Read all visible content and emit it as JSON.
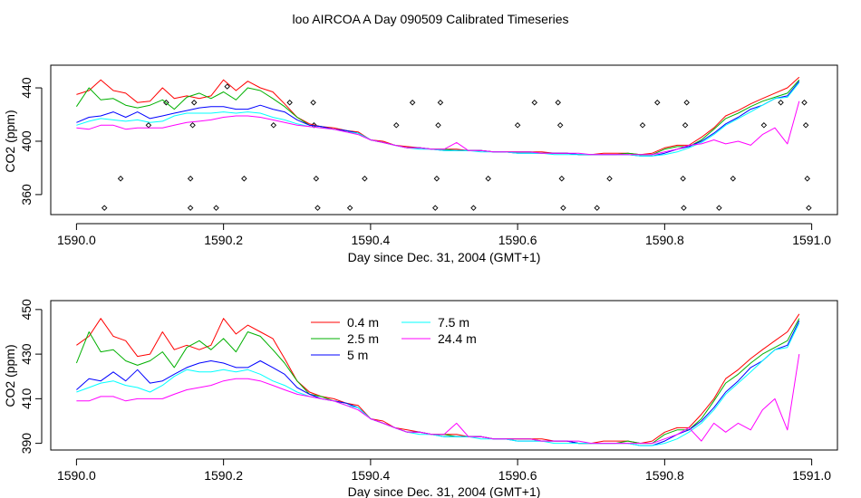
{
  "figure": {
    "title": "loo AIRCOA A  Day 090509  Calibrated Timeseries"
  },
  "chart_data": [
    {
      "type": "line",
      "xlabel": "Day since Dec. 31, 2004 (GMT+1)",
      "ylabel": "CO2 (ppm)",
      "xlim": [
        1589.965,
        1591.035
      ],
      "ylim": [
        345,
        457
      ],
      "xticks": [
        1590.0,
        1590.2,
        1590.4,
        1590.6,
        1590.8,
        1591.0
      ],
      "xtick_labels": [
        "1590.0",
        "1590.2",
        "1590.4",
        "1590.6",
        "1590.8",
        "1591.0"
      ],
      "yticks": [
        360,
        400,
        440
      ],
      "ytick_labels": [
        "360",
        "400",
        "440"
      ],
      "grid": false,
      "legend": null,
      "series_colors": [
        "#ff0000",
        "#00b000",
        "#0000ff",
        "#00ffff",
        "#ff00ff"
      ],
      "x": [
        1590.0,
        1590.017,
        1590.033,
        1590.05,
        1590.067,
        1590.083,
        1590.1,
        1590.117,
        1590.133,
        1590.15,
        1590.167,
        1590.183,
        1590.2,
        1590.217,
        1590.233,
        1590.25,
        1590.267,
        1590.283,
        1590.3,
        1590.317,
        1590.333,
        1590.35,
        1590.367,
        1590.383,
        1590.4,
        1590.417,
        1590.433,
        1590.45,
        1590.467,
        1590.483,
        1590.5,
        1590.517,
        1590.533,
        1590.55,
        1590.567,
        1590.583,
        1590.6,
        1590.617,
        1590.633,
        1590.65,
        1590.667,
        1590.683,
        1590.7,
        1590.717,
        1590.733,
        1590.75,
        1590.767,
        1590.783,
        1590.8,
        1590.817,
        1590.833,
        1590.85,
        1590.867,
        1590.883,
        1590.9,
        1590.917,
        1590.933,
        1590.95,
        1590.967,
        1590.983
      ],
      "series": [
        {
          "values": [
            435,
            438,
            446,
            438,
            436,
            429,
            430,
            440,
            432,
            434,
            432,
            434,
            446,
            438,
            445,
            440,
            437,
            428,
            418,
            413,
            411,
            410,
            408,
            407,
            401,
            400,
            397,
            396,
            395,
            394,
            394,
            394,
            393,
            393,
            392,
            392,
            392,
            392,
            392,
            391,
            391,
            390,
            390,
            391,
            391,
            391,
            390,
            391,
            395,
            397,
            397,
            403,
            410,
            419,
            423,
            428,
            432,
            436,
            440,
            448
          ]
        },
        {
          "values": [
            426,
            440,
            431,
            432,
            427,
            425,
            427,
            431,
            424,
            433,
            436,
            432,
            437,
            431,
            440,
            438,
            432,
            426,
            418,
            412,
            411,
            409,
            408,
            406,
            401,
            399,
            397,
            395,
            395,
            394,
            394,
            393,
            393,
            393,
            392,
            392,
            392,
            392,
            391,
            391,
            391,
            390,
            390,
            390,
            390,
            391,
            390,
            390,
            394,
            396,
            396,
            401,
            409,
            417,
            421,
            426,
            430,
            433,
            436,
            446
          ]
        },
        {
          "values": [
            414,
            418,
            419,
            422,
            418,
            422,
            417,
            419,
            421,
            423,
            425,
            426,
            426,
            424,
            424,
            427,
            424,
            422,
            416,
            412,
            411,
            409,
            408,
            406,
            401,
            399,
            397,
            395,
            395,
            394,
            393,
            393,
            393,
            393,
            392,
            392,
            391,
            391,
            391,
            391,
            391,
            390,
            390,
            390,
            390,
            390,
            389,
            389,
            391,
            394,
            396,
            400,
            406,
            413,
            418,
            424,
            427,
            432,
            434,
            445
          ]
        },
        {
          "values": [
            412,
            415,
            417,
            416,
            415,
            416,
            414,
            415,
            419,
            421,
            421,
            421,
            422,
            421,
            422,
            421,
            418,
            416,
            413,
            411,
            410,
            409,
            407,
            406,
            401,
            399,
            397,
            395,
            394,
            394,
            393,
            393,
            393,
            392,
            392,
            392,
            391,
            391,
            391,
            390,
            390,
            390,
            390,
            390,
            390,
            390,
            389,
            389,
            390,
            392,
            395,
            399,
            405,
            412,
            417,
            422,
            427,
            432,
            433,
            444
          ]
        },
        {
          "values": [
            410,
            409,
            412,
            412,
            409,
            410,
            410,
            410,
            412,
            414,
            415,
            416,
            418,
            419,
            419,
            418,
            416,
            414,
            412,
            411,
            410,
            409,
            407,
            405,
            401,
            399,
            397,
            395,
            395,
            394,
            394,
            399,
            393,
            393,
            392,
            392,
            392,
            392,
            391,
            391,
            391,
            391,
            390,
            390,
            390,
            390,
            390,
            390,
            392,
            394,
            397,
            398,
            401,
            398,
            400,
            397,
            405,
            410,
            398,
            430
          ]
        }
      ],
      "points": [
        {
          "x": 1590.038,
          "y": 350
        },
        {
          "x": 1590.06,
          "y": 372
        },
        {
          "x": 1590.098,
          "y": 412
        },
        {
          "x": 1590.122,
          "y": 429
        },
        {
          "x": 1590.155,
          "y": 350
        },
        {
          "x": 1590.155,
          "y": 372
        },
        {
          "x": 1590.158,
          "y": 412
        },
        {
          "x": 1590.16,
          "y": 429
        },
        {
          "x": 1590.19,
          "y": 350
        },
        {
          "x": 1590.205,
          "y": 441
        },
        {
          "x": 1590.228,
          "y": 372
        },
        {
          "x": 1590.268,
          "y": 412
        },
        {
          "x": 1590.29,
          "y": 429
        },
        {
          "x": 1590.322,
          "y": 429
        },
        {
          "x": 1590.323,
          "y": 412
        },
        {
          "x": 1590.326,
          "y": 372
        },
        {
          "x": 1590.328,
          "y": 350
        },
        {
          "x": 1590.372,
          "y": 350
        },
        {
          "x": 1590.392,
          "y": 372
        },
        {
          "x": 1590.435,
          "y": 412
        },
        {
          "x": 1590.457,
          "y": 429
        },
        {
          "x": 1590.488,
          "y": 350
        },
        {
          "x": 1590.49,
          "y": 372
        },
        {
          "x": 1590.492,
          "y": 412
        },
        {
          "x": 1590.495,
          "y": 429
        },
        {
          "x": 1590.54,
          "y": 350
        },
        {
          "x": 1590.56,
          "y": 372
        },
        {
          "x": 1590.6,
          "y": 412
        },
        {
          "x": 1590.623,
          "y": 429
        },
        {
          "x": 1590.655,
          "y": 429
        },
        {
          "x": 1590.658,
          "y": 412
        },
        {
          "x": 1590.66,
          "y": 372
        },
        {
          "x": 1590.662,
          "y": 350
        },
        {
          "x": 1590.708,
          "y": 350
        },
        {
          "x": 1590.725,
          "y": 372
        },
        {
          "x": 1590.77,
          "y": 412
        },
        {
          "x": 1590.79,
          "y": 429
        },
        {
          "x": 1590.825,
          "y": 372
        },
        {
          "x": 1590.826,
          "y": 350
        },
        {
          "x": 1590.828,
          "y": 412
        },
        {
          "x": 1590.83,
          "y": 429
        },
        {
          "x": 1590.874,
          "y": 350
        },
        {
          "x": 1590.893,
          "y": 372
        },
        {
          "x": 1590.935,
          "y": 412
        },
        {
          "x": 1590.958,
          "y": 429
        },
        {
          "x": 1590.99,
          "y": 429
        },
        {
          "x": 1590.992,
          "y": 412
        },
        {
          "x": 1590.994,
          "y": 372
        },
        {
          "x": 1590.996,
          "y": 350
        }
      ]
    },
    {
      "type": "line",
      "xlabel": "Day since Dec. 31, 2004 (GMT+1)",
      "ylabel": "CO2 (ppm)",
      "xlim": [
        1589.965,
        1591.035
      ],
      "ylim": [
        387,
        454
      ],
      "xticks": [
        1590.0,
        1590.2,
        1590.4,
        1590.6,
        1590.8,
        1591.0
      ],
      "xtick_labels": [
        "1590.0",
        "1590.2",
        "1590.4",
        "1590.6",
        "1590.8",
        "1591.0"
      ],
      "yticks": [
        390,
        410,
        430,
        450
      ],
      "ytick_labels": [
        "390",
        "410",
        "430",
        "450"
      ],
      "grid": false,
      "legend": "top-center",
      "x": [
        1590.0,
        1590.017,
        1590.033,
        1590.05,
        1590.067,
        1590.083,
        1590.1,
        1590.117,
        1590.133,
        1590.15,
        1590.167,
        1590.183,
        1590.2,
        1590.217,
        1590.233,
        1590.25,
        1590.267,
        1590.283,
        1590.3,
        1590.317,
        1590.333,
        1590.35,
        1590.367,
        1590.383,
        1590.4,
        1590.417,
        1590.433,
        1590.45,
        1590.467,
        1590.483,
        1590.5,
        1590.517,
        1590.533,
        1590.55,
        1590.567,
        1590.583,
        1590.6,
        1590.617,
        1590.633,
        1590.65,
        1590.667,
        1590.683,
        1590.7,
        1590.717,
        1590.733,
        1590.75,
        1590.767,
        1590.783,
        1590.8,
        1590.817,
        1590.833,
        1590.85,
        1590.867,
        1590.883,
        1590.9,
        1590.917,
        1590.933,
        1590.95,
        1590.967,
        1590.983
      ],
      "series": [
        {
          "name": "0.4 m",
          "color": "#ff0000",
          "values": [
            434,
            438,
            446,
            438,
            436,
            429,
            430,
            440,
            432,
            434,
            432,
            434,
            446,
            439,
            443,
            440,
            437,
            428,
            418,
            413,
            411,
            410,
            408,
            407,
            401,
            400,
            397,
            396,
            395,
            394,
            394,
            394,
            393,
            393,
            392,
            392,
            392,
            392,
            392,
            391,
            391,
            390,
            390,
            391,
            391,
            391,
            390,
            391,
            395,
            397,
            397,
            403,
            410,
            419,
            423,
            428,
            432,
            436,
            440,
            448
          ]
        },
        {
          "name": "2.5 m",
          "color": "#00b000",
          "values": [
            426,
            440,
            431,
            432,
            427,
            425,
            427,
            431,
            424,
            433,
            436,
            432,
            437,
            431,
            440,
            438,
            432,
            426,
            418,
            412,
            411,
            409,
            408,
            406,
            401,
            399,
            397,
            395,
            395,
            394,
            394,
            393,
            393,
            393,
            392,
            392,
            392,
            392,
            391,
            391,
            391,
            390,
            390,
            390,
            390,
            391,
            390,
            390,
            394,
            396,
            396,
            401,
            409,
            417,
            421,
            426,
            430,
            433,
            436,
            446
          ]
        },
        {
          "name": "5 m",
          "color": "#0000ff",
          "values": [
            414,
            419,
            418,
            422,
            418,
            423,
            417,
            418,
            421,
            424,
            426,
            427,
            426,
            424,
            424,
            427,
            424,
            421,
            415,
            412,
            410,
            409,
            408,
            406,
            401,
            399,
            397,
            395,
            395,
            394,
            393,
            393,
            393,
            393,
            392,
            392,
            391,
            391,
            391,
            391,
            391,
            390,
            390,
            390,
            390,
            390,
            389,
            389,
            391,
            394,
            396,
            400,
            406,
            413,
            418,
            424,
            427,
            432,
            434,
            445
          ]
        },
        {
          "name": "7.5 m",
          "color": "#00ffff",
          "values": [
            413,
            415,
            417,
            418,
            416,
            415,
            413,
            416,
            420,
            423,
            422,
            422,
            423,
            422,
            423,
            421,
            418,
            416,
            413,
            411,
            410,
            409,
            407,
            406,
            401,
            399,
            397,
            395,
            394,
            394,
            393,
            393,
            393,
            392,
            392,
            392,
            391,
            391,
            391,
            390,
            390,
            390,
            390,
            390,
            390,
            390,
            389,
            389,
            390,
            392,
            395,
            399,
            405,
            412,
            417,
            422,
            427,
            432,
            433,
            444
          ]
        },
        {
          "name": "24.4 m",
          "color": "#ff00ff",
          "values": [
            409,
            409,
            411,
            411,
            409,
            410,
            410,
            410,
            412,
            414,
            415,
            416,
            418,
            419,
            419,
            418,
            416,
            414,
            412,
            411,
            410,
            409,
            407,
            405,
            401,
            399,
            397,
            395,
            395,
            394,
            394,
            399,
            393,
            393,
            392,
            392,
            392,
            392,
            391,
            391,
            391,
            391,
            390,
            390,
            390,
            390,
            390,
            390,
            392,
            394,
            397,
            391,
            399,
            395,
            399,
            396,
            405,
            410,
            396,
            430
          ]
        }
      ]
    }
  ]
}
